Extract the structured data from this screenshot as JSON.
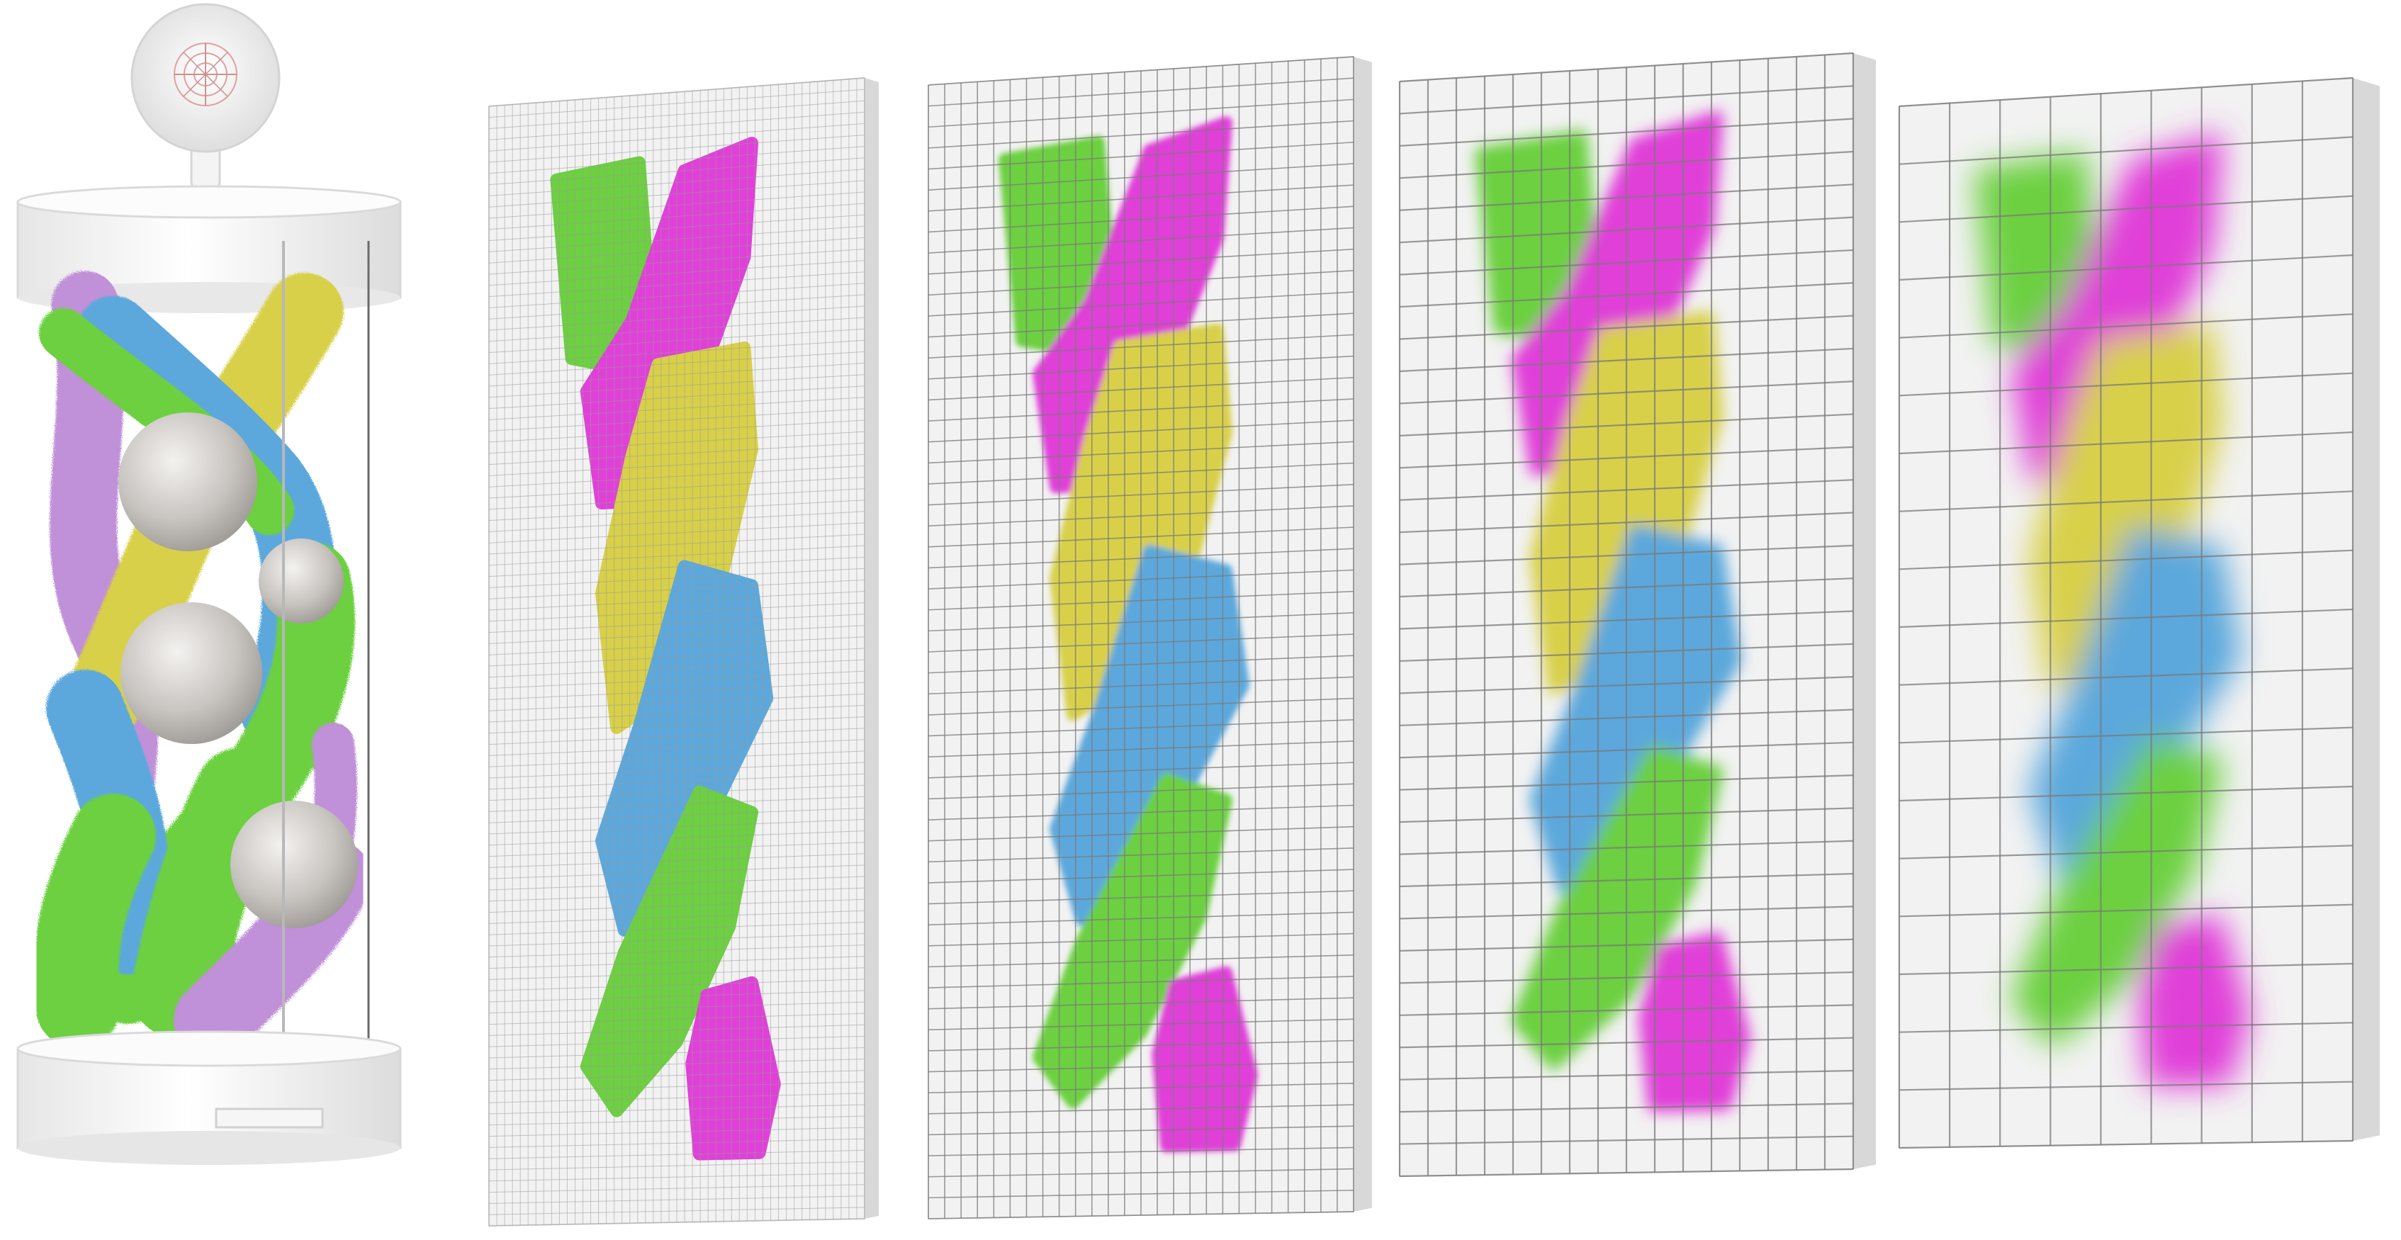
{
  "figure": {
    "background": "#ffffff",
    "palette": {
      "magenta": "#e040d8",
      "yellow": "#d8d048",
      "blue": "#5ca8dc",
      "green": "#6cd040",
      "violet": "#c090d8",
      "panel": "#f2f2f2",
      "panel_side": "#d8d8d8",
      "device_body": "#fafafa",
      "sphere": "#c8c4c0"
    },
    "device": {
      "name": "capture-cylinder",
      "strand_colors": [
        "violet",
        "yellow",
        "blue",
        "green",
        "magenta"
      ],
      "sphere_count": 4
    },
    "panels": [
      {
        "name": "grid-panel-fine",
        "columns": 48,
        "rows": 100,
        "blur": 0
      },
      {
        "name": "grid-panel-medium",
        "columns": 26,
        "rows": 54,
        "blur": 4
      },
      {
        "name": "grid-panel-coarse",
        "columns": 16,
        "rows": 34,
        "blur": 10
      },
      {
        "name": "grid-panel-coarsest",
        "columns": 9,
        "rows": 18,
        "blur": 22
      }
    ]
  }
}
